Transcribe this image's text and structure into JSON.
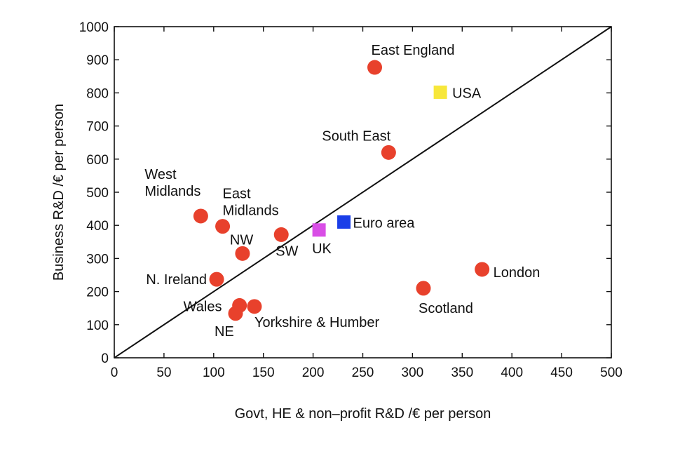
{
  "chart_data": {
    "type": "scatter",
    "xlabel": "Govt, HE & non–profit R&D /€ per person",
    "ylabel": "Business R&D /€ per person",
    "xlim": [
      0,
      500
    ],
    "ylim": [
      0,
      1000
    ],
    "x_ticks": [
      "0",
      "50",
      "100",
      "150",
      "200",
      "250",
      "300",
      "350",
      "400",
      "450",
      "500"
    ],
    "y_ticks": [
      "0",
      "100",
      "200",
      "300",
      "400",
      "500",
      "600",
      "700",
      "800",
      "900",
      "1000"
    ],
    "grid": false,
    "reference_line": {
      "x": [
        0,
        500
      ],
      "y": [
        0,
        1000
      ],
      "color": "#111111"
    },
    "colors": {
      "region": "#e8412c",
      "usa": "#f7e73b",
      "euro": "#1a3ee8",
      "uk": "#d94ee6"
    },
    "points": [
      {
        "label": [
          "East England"
        ],
        "x": 262,
        "y": 877,
        "marker": "circle",
        "color": "#e8412c"
      },
      {
        "label": [
          "USA"
        ],
        "x": 328,
        "y": 802,
        "marker": "square",
        "color": "#f7e73b"
      },
      {
        "label": [
          "South East"
        ],
        "x": 276,
        "y": 620,
        "marker": "circle",
        "color": "#e8412c"
      },
      {
        "label": [
          "West",
          "Midlands"
        ],
        "x": 87,
        "y": 428,
        "marker": "circle",
        "color": "#e8412c"
      },
      {
        "label": [
          "East",
          "Midlands"
        ],
        "x": 109,
        "y": 397,
        "marker": "circle",
        "color": "#e8412c"
      },
      {
        "label": [
          "SW"
        ],
        "x": 168,
        "y": 372,
        "marker": "circle",
        "color": "#e8412c"
      },
      {
        "label": [
          "NW"
        ],
        "x": 129,
        "y": 315,
        "marker": "circle",
        "color": "#e8412c"
      },
      {
        "label": [
          "UK"
        ],
        "x": 206,
        "y": 386,
        "marker": "square",
        "color": "#d94ee6"
      },
      {
        "label": [
          "Euro area"
        ],
        "x": 231,
        "y": 410,
        "marker": "square",
        "color": "#1a3ee8"
      },
      {
        "label": [
          "London"
        ],
        "x": 370,
        "y": 267,
        "marker": "circle",
        "color": "#e8412c"
      },
      {
        "label": [
          "N. Ireland"
        ],
        "x": 103,
        "y": 237,
        "marker": "circle",
        "color": "#e8412c"
      },
      {
        "label": [
          "Scotland"
        ],
        "x": 311,
        "y": 210,
        "marker": "circle",
        "color": "#e8412c"
      },
      {
        "label": [
          "Wales"
        ],
        "x": 126,
        "y": 158,
        "marker": "circle",
        "color": "#e8412c"
      },
      {
        "label": [
          "Yorkshire & Humber"
        ],
        "x": 141,
        "y": 155,
        "marker": "circle",
        "color": "#e8412c"
      },
      {
        "label": [
          "NE"
        ],
        "x": 122,
        "y": 134,
        "marker": "circle",
        "color": "#e8412c"
      }
    ]
  }
}
